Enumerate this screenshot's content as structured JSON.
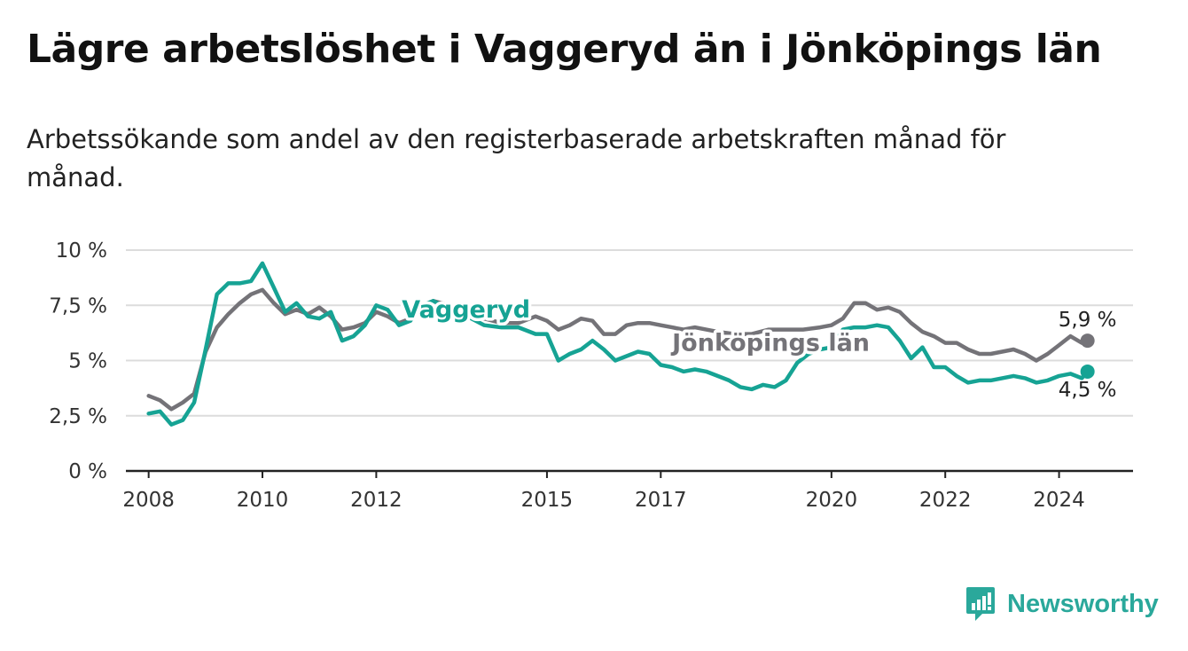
{
  "title": "Lägre arbetslöshet i Vaggeryd än i Jönköpings län",
  "subtitle": "Arbetssökande som andel av den registerbaserade arbetskraften månad för månad.",
  "brand": {
    "name": "Newsworthy",
    "icon": "bar-chart-badge-icon"
  },
  "colors": {
    "vaggeryd": "#16a394",
    "jonkoping": "#747378",
    "grid": "#dcdcdc",
    "axis": "#222222"
  },
  "chart_data": {
    "type": "line",
    "title": "Lägre arbetslöshet i Vaggeryd än i Jönköpings län",
    "xlabel": "",
    "ylabel": "",
    "xlim": [
      2007.6,
      2025.3
    ],
    "ylim": [
      0,
      10
    ],
    "yticks": [
      0,
      2.5,
      5,
      7.5,
      10
    ],
    "ytick_labels": [
      "0 %",
      "2,5 %",
      "5 %",
      "7,5 %",
      "10 %"
    ],
    "xticks": [
      2008,
      2010,
      2012,
      2015,
      2017,
      2020,
      2022,
      2024
    ],
    "xtick_labels": [
      "2008",
      "2010",
      "2012",
      "2015",
      "2017",
      "2020",
      "2022",
      "2024"
    ],
    "legend": "inline",
    "series": [
      {
        "name": "Vaggeryd",
        "label": "Vaggeryd",
        "end_label": "4,5 %",
        "x": [
          2008.0,
          2008.2,
          2008.4,
          2008.6,
          2008.8,
          2009.0,
          2009.2,
          2009.4,
          2009.6,
          2009.8,
          2010.0,
          2010.2,
          2010.4,
          2010.6,
          2010.8,
          2011.0,
          2011.2,
          2011.4,
          2011.6,
          2011.8,
          2012.0,
          2012.2,
          2012.4,
          2012.6,
          2012.8,
          2013.0,
          2013.3,
          2013.6,
          2013.9,
          2014.2,
          2014.5,
          2014.8,
          2015.0,
          2015.2,
          2015.4,
          2015.6,
          2015.8,
          2016.0,
          2016.2,
          2016.4,
          2016.6,
          2016.8,
          2017.0,
          2017.2,
          2017.4,
          2017.6,
          2017.8,
          2018.0,
          2018.2,
          2018.4,
          2018.6,
          2018.8,
          2019.0,
          2019.2,
          2019.4,
          2019.6,
          2019.8,
          2020.0,
          2020.2,
          2020.4,
          2020.6,
          2020.8,
          2021.0,
          2021.2,
          2021.4,
          2021.6,
          2021.8,
          2022.0,
          2022.2,
          2022.4,
          2022.6,
          2022.8,
          2023.0,
          2023.2,
          2023.4,
          2023.6,
          2023.8,
          2024.0,
          2024.2,
          2024.4,
          2024.5
        ],
        "values": [
          2.6,
          2.7,
          2.1,
          2.3,
          3.1,
          5.5,
          8.0,
          8.5,
          8.5,
          8.6,
          9.4,
          8.3,
          7.2,
          7.6,
          7.0,
          6.9,
          7.2,
          5.9,
          6.1,
          6.6,
          7.5,
          7.3,
          6.6,
          6.8,
          7.5,
          7.7,
          7.3,
          7.0,
          6.6,
          6.5,
          6.5,
          6.2,
          6.2,
          5.0,
          5.3,
          5.5,
          5.9,
          5.5,
          5.0,
          5.2,
          5.4,
          5.3,
          4.8,
          4.7,
          4.5,
          4.6,
          4.5,
          4.3,
          4.1,
          3.8,
          3.7,
          3.9,
          3.8,
          4.1,
          4.9,
          5.3,
          5.5,
          5.6,
          6.4,
          6.5,
          6.5,
          6.6,
          6.5,
          5.9,
          5.1,
          5.6,
          4.7,
          4.7,
          4.3,
          4.0,
          4.1,
          4.1,
          4.2,
          4.3,
          4.2,
          4.0,
          4.1,
          4.3,
          4.4,
          4.2,
          4.5
        ]
      },
      {
        "name": "Jönköpings län",
        "label": "Jönköpings län",
        "end_label": "5,9 %",
        "x": [
          2008.0,
          2008.2,
          2008.4,
          2008.6,
          2008.8,
          2009.0,
          2009.2,
          2009.4,
          2009.6,
          2009.8,
          2010.0,
          2010.2,
          2010.4,
          2010.6,
          2010.8,
          2011.0,
          2011.2,
          2011.4,
          2011.6,
          2011.8,
          2012.0,
          2012.2,
          2012.4,
          2012.6,
          2012.8,
          2013.0,
          2013.3,
          2013.6,
          2013.9,
          2014.2,
          2014.5,
          2014.8,
          2015.0,
          2015.2,
          2015.4,
          2015.6,
          2015.8,
          2016.0,
          2016.2,
          2016.4,
          2016.6,
          2016.8,
          2017.0,
          2017.2,
          2017.4,
          2017.6,
          2017.8,
          2018.0,
          2018.3,
          2018.6,
          2018.9,
          2019.2,
          2019.5,
          2019.8,
          2020.0,
          2020.2,
          2020.4,
          2020.6,
          2020.8,
          2021.0,
          2021.2,
          2021.4,
          2021.6,
          2021.8,
          2022.0,
          2022.2,
          2022.4,
          2022.6,
          2022.8,
          2023.0,
          2023.2,
          2023.4,
          2023.6,
          2023.8,
          2024.0,
          2024.2,
          2024.4,
          2024.5
        ],
        "values": [
          3.4,
          3.2,
          2.8,
          3.1,
          3.5,
          5.4,
          6.5,
          7.1,
          7.6,
          8.0,
          8.2,
          7.6,
          7.1,
          7.3,
          7.1,
          7.4,
          7.0,
          6.4,
          6.5,
          6.7,
          7.2,
          7.0,
          6.7,
          6.9,
          7.3,
          7.7,
          7.5,
          7.2,
          6.9,
          6.7,
          6.7,
          7.0,
          6.8,
          6.4,
          6.6,
          6.9,
          6.8,
          6.2,
          6.2,
          6.6,
          6.7,
          6.7,
          6.6,
          6.5,
          6.4,
          6.5,
          6.4,
          6.3,
          6.2,
          6.2,
          6.4,
          6.4,
          6.4,
          6.5,
          6.6,
          6.9,
          7.6,
          7.6,
          7.3,
          7.4,
          7.2,
          6.7,
          6.3,
          6.1,
          5.8,
          5.8,
          5.5,
          5.3,
          5.3,
          5.4,
          5.5,
          5.3,
          5.0,
          5.3,
          5.7,
          6.1,
          5.8,
          5.9
        ]
      }
    ]
  }
}
